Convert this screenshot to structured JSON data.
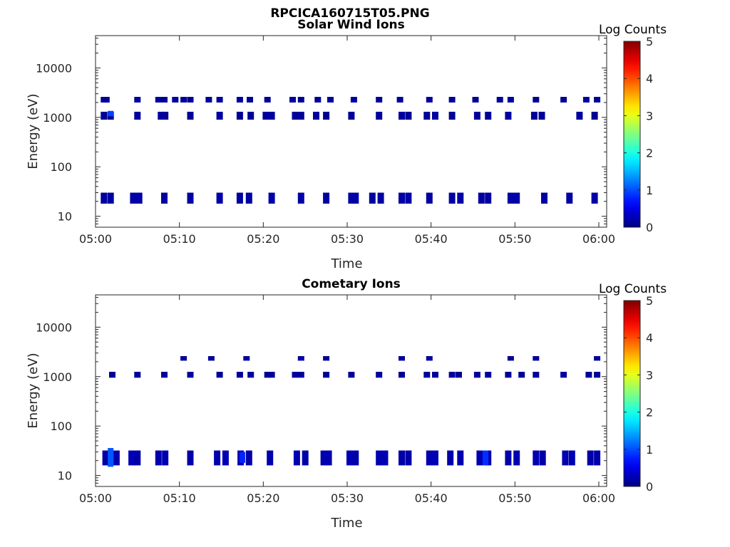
{
  "figure_title": "RPCICA160715T05.PNG",
  "chart_data": [
    {
      "type": "heatmap",
      "title": "Solar Wind Ions",
      "xlabel": "Time",
      "ylabel": "Energy (eV)",
      "x_range": [
        "05:00",
        "06:00"
      ],
      "x_ticks": [
        "05:00",
        "05:10",
        "05:20",
        "05:30",
        "05:40",
        "05:50",
        "06:00"
      ],
      "y_scale": "log",
      "y_range": [
        6,
        45000
      ],
      "y_ticks": [
        "10",
        "100",
        "1000",
        "10000"
      ],
      "colorbar": {
        "title": "Log Counts",
        "range": [
          0,
          5
        ],
        "ticks": [
          "0",
          "1",
          "2",
          "3",
          "4",
          "5"
        ],
        "colormap": "jet"
      },
      "bands": [
        {
          "name": "high",
          "e_lo": 2000,
          "e_hi": 2600,
          "times": [
            1.0,
            1.3,
            5.0,
            7.5,
            8.2,
            9.5,
            10.5,
            11.3,
            13.5,
            14.8,
            17.2,
            18.4,
            20.5,
            23.5,
            24.5,
            26.5,
            28.0,
            30.8,
            33.8,
            36.3,
            39.8,
            42.5,
            45.3,
            48.2,
            49.5,
            52.5,
            55.8,
            58.5,
            59.8
          ]
        },
        {
          "name": "upper-mid",
          "e_lo": 900,
          "e_hi": 1300,
          "times": [
            1.0,
            1.8,
            5.0,
            7.8,
            8.3,
            11.3,
            14.8,
            17.2,
            18.5,
            20.3,
            21.0,
            23.8,
            24.5,
            26.3,
            27.5,
            30.5,
            33.8,
            36.5,
            37.3,
            39.5,
            40.5,
            42.5,
            45.5,
            46.8,
            49.2,
            52.3,
            53.2,
            57.7,
            59.5
          ]
        },
        {
          "name": "low",
          "e_lo": 18,
          "e_hi": 30,
          "times": [
            1.0,
            1.8,
            4.5,
            5.2,
            8.2,
            11.3,
            14.8,
            17.2,
            18.3,
            21.0,
            24.5,
            27.5,
            30.5,
            31.0,
            33.0,
            34.0,
            36.5,
            37.3,
            39.8,
            42.5,
            43.5,
            46.0,
            46.8,
            49.5,
            50.2,
            53.5,
            56.5,
            59.5
          ],
          "intensity": 0.15
        }
      ],
      "hot_cells": [
        {
          "t": 1.8,
          "e_lo": 1050,
          "e_hi": 1350,
          "log_counts": 0.8
        }
      ]
    },
    {
      "type": "heatmap",
      "title": "Cometary Ions",
      "xlabel": "Time",
      "ylabel": "Energy (eV)",
      "x_range": [
        "05:00",
        "06:00"
      ],
      "x_ticks": [
        "05:00",
        "05:10",
        "05:20",
        "05:30",
        "05:40",
        "05:50",
        "06:00"
      ],
      "y_scale": "log",
      "y_range": [
        6,
        45000
      ],
      "y_ticks": [
        "10",
        "100",
        "1000",
        "10000"
      ],
      "colorbar": {
        "title": "Log Counts",
        "range": [
          0,
          5
        ],
        "ticks": [
          "0",
          "1",
          "2",
          "3",
          "4",
          "5"
        ],
        "colormap": "jet"
      },
      "bands": [
        {
          "name": "high",
          "e_lo": 2100,
          "e_hi": 2600,
          "times": [
            10.5,
            13.8,
            18.0,
            24.5,
            27.5,
            36.5,
            39.8,
            49.5,
            52.5,
            59.8
          ]
        },
        {
          "name": "upper-mid",
          "e_lo": 950,
          "e_hi": 1250,
          "times": [
            2.0,
            5.0,
            8.2,
            11.3,
            14.8,
            17.2,
            18.5,
            20.5,
            21.0,
            23.8,
            24.5,
            27.5,
            30.5,
            33.8,
            36.5,
            39.5,
            40.5,
            42.5,
            43.3,
            45.5,
            46.8,
            49.2,
            50.8,
            52.5,
            55.8,
            58.8,
            59.8
          ]
        },
        {
          "name": "low",
          "e_lo": 16,
          "e_hi": 32,
          "times": [
            1.2,
            1.8,
            2.5,
            4.3,
            5.0,
            7.5,
            8.3,
            11.3,
            14.5,
            15.5,
            17.3,
            18.3,
            20.8,
            24.0,
            25.0,
            27.2,
            27.8,
            30.3,
            31.0,
            33.8,
            34.5,
            36.5,
            37.3,
            39.8,
            40.5,
            42.3,
            43.5,
            45.8,
            46.8,
            49.2,
            50.2,
            52.5,
            53.3,
            56.0,
            56.8,
            59.0,
            59.8
          ],
          "intensity": 0.2
        }
      ],
      "hot_cells": [
        {
          "t": 1.8,
          "e_lo": 15,
          "e_hi": 36,
          "log_counts": 1.0
        },
        {
          "t": 17.5,
          "e_lo": 18,
          "e_hi": 30,
          "log_counts": 0.5
        },
        {
          "t": 46.5,
          "e_lo": 16,
          "e_hi": 32,
          "log_counts": 0.6
        }
      ]
    }
  ]
}
